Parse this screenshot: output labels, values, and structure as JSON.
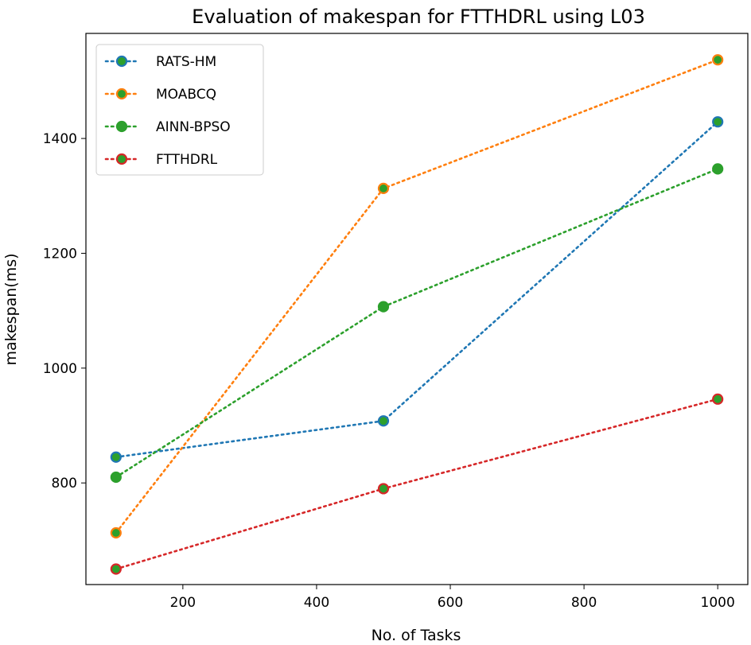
{
  "chart_data": {
    "type": "line",
    "title": "Evaluation of makespan for FTTHDRL using L03",
    "xlabel": "No. of Tasks",
    "ylabel": "makespan(ms)",
    "x": [
      100,
      500,
      1000
    ],
    "xlim": [
      55,
      1045
    ],
    "ylim": [
      623,
      1583
    ],
    "x_ticks": [
      200,
      400,
      600,
      800,
      1000
    ],
    "y_ticks": [
      800,
      1000,
      1200,
      1400
    ],
    "line_style": "dotted",
    "markers": "circle",
    "grid": false,
    "legend_position": "top-left",
    "series": [
      {
        "name": "RATS-HM",
        "color": "#1f77b4",
        "values": [
          845,
          908,
          1429
        ]
      },
      {
        "name": "MOABCQ",
        "color": "#ff7f0e",
        "values": [
          713,
          1313,
          1537
        ]
      },
      {
        "name": "AINN-BPSO",
        "color": "#2ca02c",
        "values": [
          810,
          1107,
          1347
        ]
      },
      {
        "name": "FTTHDRL",
        "color": "#d62728",
        "values": [
          650,
          790,
          946
        ]
      }
    ]
  }
}
